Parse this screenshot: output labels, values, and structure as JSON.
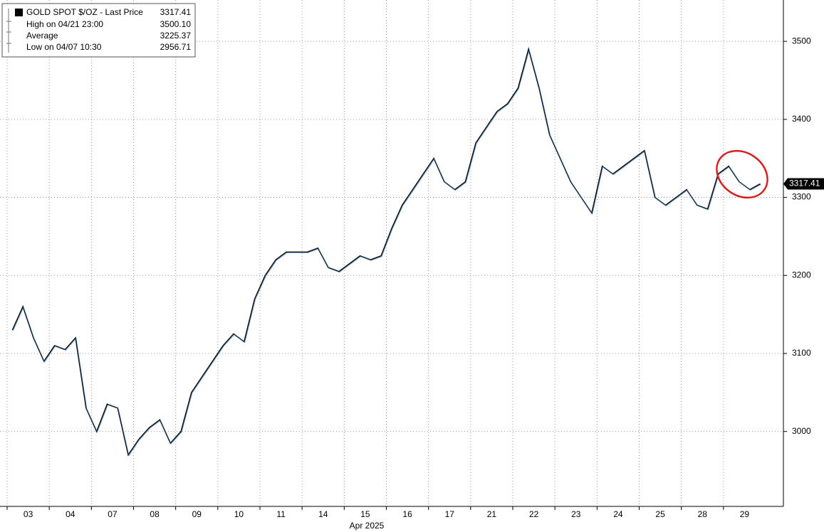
{
  "chart_data": {
    "type": "line",
    "legend": {
      "title": "GOLD SPOT $/OZ - Last Price",
      "stats": [
        {
          "label": "High on 04/21 23:00",
          "value": "3500.10"
        },
        {
          "label": "Average",
          "value": "3225.37"
        },
        {
          "label": "Low on 04/07 10:30",
          "value": "2956.71"
        }
      ]
    },
    "x_axis_label": "Apr 2025",
    "categories": [
      null,
      "03",
      null,
      null,
      null,
      "04",
      null,
      null,
      null,
      "07",
      null,
      null,
      null,
      "08",
      null,
      null,
      null,
      "09",
      null,
      null,
      null,
      "10",
      null,
      null,
      null,
      "11",
      null,
      null,
      null,
      "14",
      null,
      null,
      null,
      "15",
      null,
      null,
      null,
      "16",
      null,
      null,
      null,
      "17",
      null,
      null,
      null,
      "21",
      null,
      null,
      null,
      "22",
      null,
      null,
      null,
      "23",
      null,
      null,
      null,
      "24",
      null,
      null,
      null,
      "25",
      null,
      null,
      null,
      "28",
      null,
      null,
      null,
      "29",
      null,
      null
    ],
    "series": [
      {
        "name": "GOLD SPOT $/OZ",
        "color": "#111111",
        "values": [
          3130,
          3160,
          3120,
          3090,
          3110,
          3105,
          3120,
          3030,
          3000,
          3035,
          3030,
          2970,
          2990,
          3005,
          3015,
          2985,
          3000,
          3050,
          3070,
          3090,
          3110,
          3125,
          3115,
          3170,
          3200,
          3220,
          3230,
          3230,
          3230,
          3235,
          3210,
          3205,
          3215,
          3225,
          3220,
          3225,
          3260,
          3290,
          3310,
          3330,
          3350,
          3320,
          3310,
          3320,
          3370,
          3390,
          3410,
          3420,
          3440,
          3490,
          3440,
          3380,
          3350,
          3320,
          3300,
          3280,
          3340,
          3330,
          3340,
          3350,
          3360,
          3300,
          3290,
          3300,
          3310,
          3290,
          3285,
          3330,
          3340,
          3320,
          3310,
          3317.41
        ]
      }
    ],
    "ylim": [
      2904,
      3553
    ],
    "yticks": [
      3000,
      3100,
      3200,
      3300,
      3400,
      3500
    ],
    "grid": true
  }
}
